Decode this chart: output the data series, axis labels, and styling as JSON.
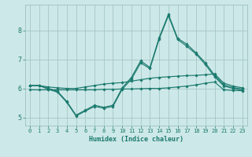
{
  "xlabel": "Humidex (Indice chaleur)",
  "x": [
    0,
    1,
    2,
    3,
    4,
    5,
    6,
    7,
    8,
    9,
    10,
    11,
    12,
    13,
    14,
    15,
    16,
    17,
    18,
    19,
    20,
    21,
    22,
    23
  ],
  "line_upper_env": [
    6.1,
    6.1,
    6.05,
    6.02,
    6.0,
    6.0,
    6.05,
    6.1,
    6.15,
    6.18,
    6.2,
    6.25,
    6.3,
    6.35,
    6.38,
    6.4,
    6.42,
    6.44,
    6.45,
    6.47,
    6.5,
    6.18,
    6.08,
    6.02
  ],
  "line_lower_env": [
    5.95,
    5.95,
    5.95,
    5.95,
    5.95,
    5.95,
    5.95,
    5.95,
    5.97,
    5.97,
    5.98,
    5.98,
    5.99,
    6.0,
    6.0,
    6.02,
    6.05,
    6.08,
    6.12,
    6.18,
    6.22,
    5.95,
    5.93,
    5.92
  ],
  "line_peak_hi": [
    6.1,
    6.1,
    6.0,
    5.9,
    5.55,
    5.08,
    5.25,
    5.42,
    5.35,
    5.42,
    6.02,
    6.38,
    6.95,
    6.72,
    7.75,
    8.55,
    7.72,
    7.52,
    7.22,
    6.88,
    6.45,
    6.12,
    6.03,
    5.98
  ],
  "line_peak_lo": [
    6.1,
    6.1,
    5.97,
    5.87,
    5.52,
    5.05,
    5.22,
    5.38,
    5.32,
    5.38,
    5.97,
    6.32,
    6.88,
    6.68,
    7.7,
    8.5,
    7.68,
    7.45,
    7.18,
    6.82,
    6.4,
    6.08,
    6.0,
    5.93
  ],
  "line_color": "#1a7a6e",
  "bg_color": "#cde8e8",
  "grid_color": "#9ec0c0",
  "ylim": [
    4.72,
    8.88
  ],
  "yticks": [
    5,
    6,
    7,
    8
  ],
  "xticks": [
    0,
    1,
    2,
    3,
    4,
    5,
    6,
    7,
    8,
    9,
    10,
    11,
    12,
    13,
    14,
    15,
    16,
    17,
    18,
    19,
    20,
    21,
    22,
    23
  ]
}
